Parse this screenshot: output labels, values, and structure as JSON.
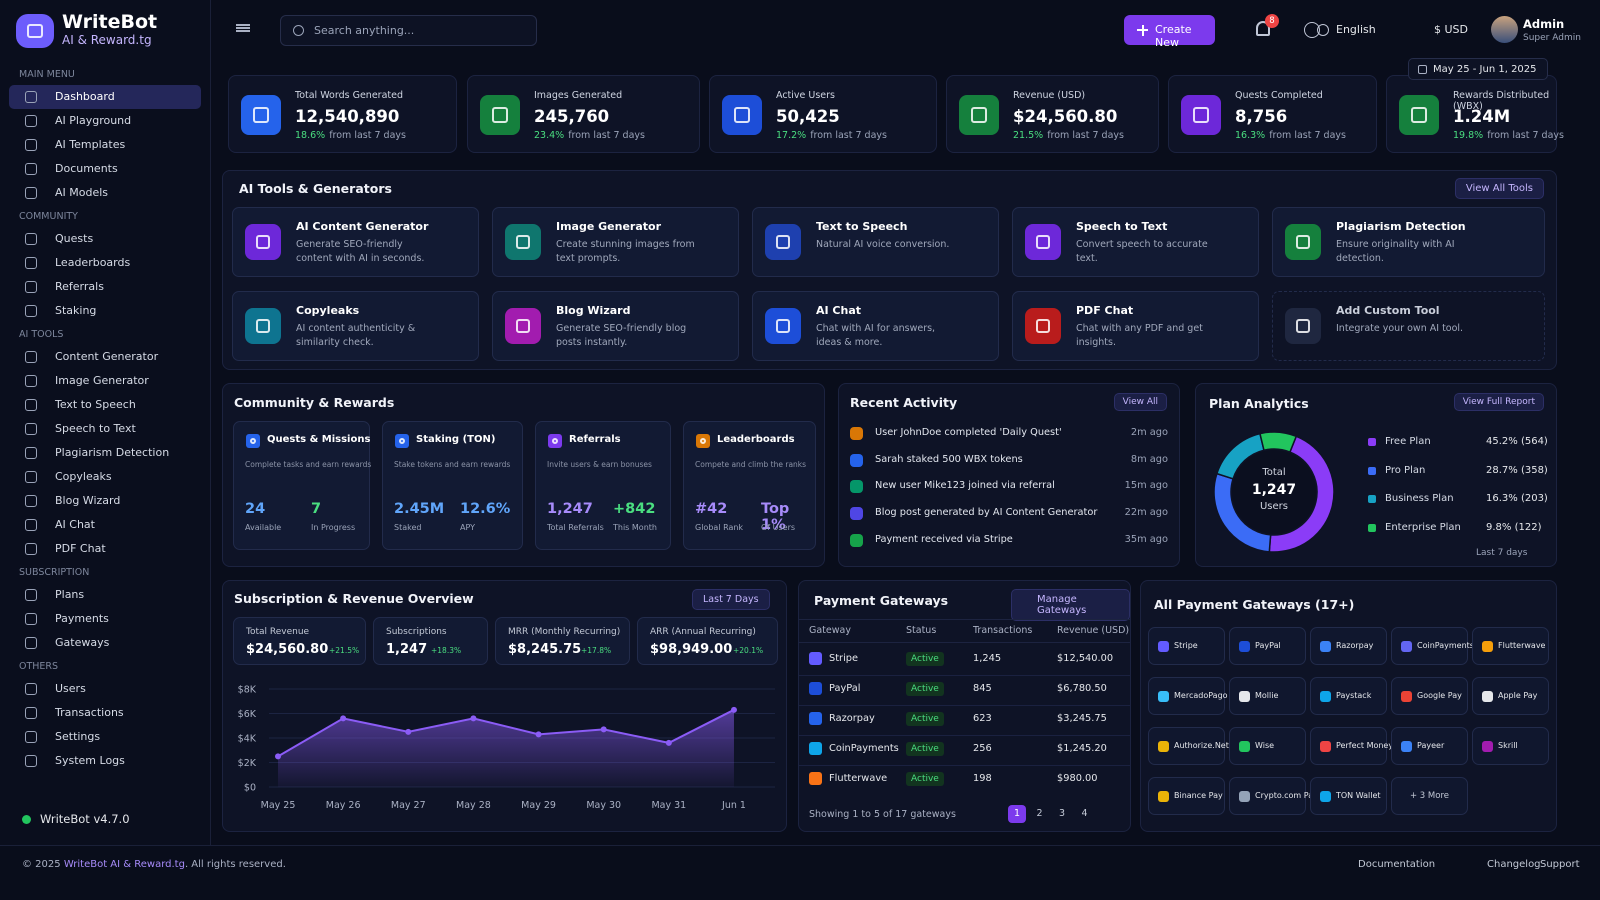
{
  "brand": {
    "name": "WriteBot",
    "tagline": "AI & Reward.tg"
  },
  "sidebar": {
    "sections": [
      {
        "title": "MAIN MENU",
        "items": [
          "Dashboard",
          "AI Playground",
          "AI Templates",
          "Documents",
          "AI Models"
        ]
      },
      {
        "title": "COMMUNITY",
        "items": [
          "Quests",
          "Leaderboards",
          "Referrals",
          "Staking"
        ]
      },
      {
        "title": "AI TOOLS",
        "items": [
          "Content Generator",
          "Image Generator",
          "Text to Speech",
          "Speech to Text",
          "Plagiarism Detection",
          "Copyleaks",
          "Blog Wizard",
          "AI Chat",
          "PDF Chat"
        ]
      },
      {
        "title": "SUBSCRIPTION",
        "items": [
          "Plans",
          "Payments",
          "Gateways"
        ]
      },
      {
        "title": "OTHERS",
        "items": [
          "Users",
          "Transactions",
          "Settings",
          "System Logs"
        ]
      }
    ],
    "version": "WriteBot v4.7.0"
  },
  "topbar": {
    "search_placeholder": "Search anything...",
    "create": "Create New",
    "notifications": "8",
    "language": "English",
    "currency": "$ USD",
    "user": {
      "name": "Admin",
      "role": "Super Admin"
    },
    "date_range": "May 25 - Jun 1, 2025"
  },
  "stats": [
    {
      "label": "Total Words Generated",
      "value": "12,540,890",
      "change": "18.6%",
      "note": "from last 7 days"
    },
    {
      "label": "Images Generated",
      "value": "245,760",
      "change": "23.4%",
      "note": "from last 7 days"
    },
    {
      "label": "Active Users",
      "value": "50,425",
      "change": "17.2%",
      "note": "from last 7 days"
    },
    {
      "label": "Revenue (USD)",
      "value": "$24,560.80",
      "change": "21.5%",
      "note": "from last 7 days"
    },
    {
      "label": "Quests Completed",
      "value": "8,756",
      "change": "16.3%",
      "note": "from last 7 days"
    },
    {
      "label": "Rewards Distributed (WBX)",
      "value": "1.24M",
      "change": "19.8%",
      "note": "from last 7 days"
    }
  ],
  "tools": {
    "title": "AI Tools & Generators",
    "view_all": "View All Tools",
    "items": [
      {
        "name": "AI Content Generator",
        "desc": "Generate SEO-friendly content with AI in seconds."
      },
      {
        "name": "Image Generator",
        "desc": "Create stunning images from text prompts."
      },
      {
        "name": "Text to Speech",
        "desc": "Natural AI voice conversion."
      },
      {
        "name": "Speech to Text",
        "desc": "Convert speech to accurate text."
      },
      {
        "name": "Plagiarism Detection",
        "desc": "Ensure originality with AI detection."
      },
      {
        "name": "Copyleaks",
        "desc": "AI content authenticity & similarity check."
      },
      {
        "name": "Blog Wizard",
        "desc": "Generate SEO-friendly blog posts instantly."
      },
      {
        "name": "AI Chat",
        "desc": "Chat with AI for answers, ideas & more."
      },
      {
        "name": "PDF Chat",
        "desc": "Chat with any PDF and get insights."
      },
      {
        "name": "Add Custom Tool",
        "desc": "Integrate your own AI tool."
      }
    ]
  },
  "community": {
    "title": "Community & Rewards",
    "cards": [
      {
        "name": "Quests & Missions",
        "desc": "Complete tasks and earn rewards",
        "stats": [
          {
            "value": "24",
            "label": "Available"
          },
          {
            "value": "7",
            "label": "In Progress"
          }
        ]
      },
      {
        "name": "Staking (TON)",
        "desc": "Stake tokens and earn rewards",
        "stats": [
          {
            "value": "2.45M",
            "label": "Staked"
          },
          {
            "value": "12.6%",
            "label": "APY"
          }
        ]
      },
      {
        "name": "Referrals",
        "desc": "Invite users & earn bonuses",
        "stats": [
          {
            "value": "1,247",
            "label": "Total Referrals"
          },
          {
            "value": "+842",
            "label": "This Month"
          }
        ]
      },
      {
        "name": "Leaderboards",
        "desc": "Compete and climb the ranks",
        "stats": [
          {
            "value": "#42",
            "label": "Global Rank"
          },
          {
            "value": "Top 1%",
            "label": "Of Users"
          }
        ]
      }
    ]
  },
  "activity": {
    "title": "Recent Activity",
    "view_all": "View All",
    "items": [
      {
        "text": "User JohnDoe completed 'Daily Quest'",
        "time": "2m ago"
      },
      {
        "text": "Sarah staked 500 WBX tokens",
        "time": "8m ago"
      },
      {
        "text": "New user Mike123 joined via referral",
        "time": "15m ago"
      },
      {
        "text": "Blog post generated by AI Content Generator",
        "time": "22m ago"
      },
      {
        "text": "Payment received via Stripe",
        "time": "35m ago"
      }
    ]
  },
  "plans": {
    "title": "Plan Analytics",
    "report": "View Full Report",
    "period": "Last 7 days",
    "center": {
      "label": "Total",
      "value": "1,247",
      "unit": "Users"
    },
    "chart": {
      "type": "pie",
      "categories": [
        "Free Plan",
        "Pro Plan",
        "Business Plan",
        "Enterprise Plan"
      ],
      "values": [
        45.2,
        28.7,
        16.3,
        9.8
      ],
      "value_labels": [
        "45.2% (564)",
        "28.7% (358)",
        "16.3% (203)",
        "9.8% (122)"
      ],
      "colors": [
        "#8b3cf7",
        "#3b6cf6",
        "#17a2c4",
        "#22c55e"
      ]
    }
  },
  "revenue": {
    "title": "Subscription & Revenue Overview",
    "period": "Last 7 Days",
    "kpis": [
      {
        "label": "Total Revenue",
        "value": "$24,560.80",
        "change": "+21.5%"
      },
      {
        "label": "Subscriptions",
        "value": "1,247",
        "change": "+18.3%"
      },
      {
        "label": "MRR (Monthly Recurring)",
        "value": "$8,245.75",
        "change": "+17.8%"
      },
      {
        "label": "ARR (Annual Recurring)",
        "value": "$98,949.00",
        "change": "+20.1%"
      }
    ],
    "chart": {
      "type": "line",
      "categories": [
        "May 25",
        "May 26",
        "May 27",
        "May 28",
        "May 29",
        "May 30",
        "May 31",
        "Jun 1"
      ],
      "values": [
        2500,
        5600,
        4500,
        5600,
        4300,
        4700,
        3600,
        6300
      ],
      "color": "#8b5cf6",
      "ylim": [
        0,
        8000
      ],
      "yticks": [
        {
          "value": 0,
          "label": "$0"
        },
        {
          "value": 2000,
          "label": "$2K"
        },
        {
          "value": 4000,
          "label": "$4K"
        },
        {
          "value": 6000,
          "label": "$6K"
        },
        {
          "value": 8000,
          "label": "$8K"
        }
      ]
    }
  },
  "payments": {
    "title": "Payment Gateways",
    "manage": "Manage Gateways",
    "columns": [
      "Gateway",
      "Status",
      "Transactions",
      "Revenue (USD)"
    ],
    "rows": [
      [
        "Stripe",
        "Active",
        "1,245",
        "$12,540.00"
      ],
      [
        "PayPal",
        "Active",
        "845",
        "$6,780.50"
      ],
      [
        "Razorpay",
        "Active",
        "623",
        "$3,245.75"
      ],
      [
        "CoinPayments",
        "Active",
        "256",
        "$1,245.20"
      ],
      [
        "Flutterwave",
        "Active",
        "198",
        "$980.00"
      ]
    ],
    "footer": "Showing 1 to 5 of 17 gateways",
    "pages": [
      "1",
      "2",
      "3",
      "4"
    ]
  },
  "all_gateways": {
    "title": "All Payment Gateways (17+)",
    "items": [
      "Stripe",
      "PayPal",
      "Razorpay",
      "CoinPayments",
      "Flutterwave",
      "MercadoPago",
      "Mollie",
      "Paystack",
      "Google Pay",
      "Apple Pay",
      "Authorize.Net",
      "Wise",
      "Perfect Money",
      "Payeer",
      "Skrill",
      "Binance Pay",
      "Crypto.com Pay",
      "TON Wallet"
    ],
    "more": "+ 3 More"
  },
  "footer": {
    "prefix": "© 2025",
    "link": "WriteBot AI & Reward.tg",
    "suffix": ". All rights reserved.",
    "links": [
      "Documentation",
      "Changelog",
      "Support"
    ]
  }
}
